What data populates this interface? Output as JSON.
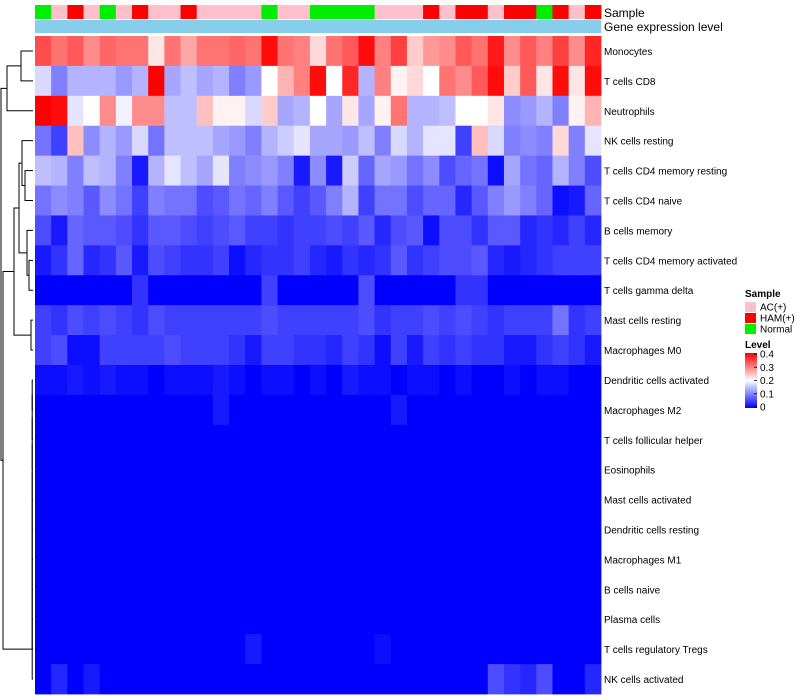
{
  "chart_data": {
    "type": "heatmap",
    "title": "",
    "annotation_tracks": [
      {
        "label": "Sample"
      },
      {
        "label": "Gene expression level"
      }
    ],
    "value_range": [
      0,
      0.4
    ],
    "samples": [
      "Normal",
      "AC(+)",
      "HAM(+)",
      "AC(+)",
      "Normal",
      "AC(+)",
      "HAM(+)",
      "AC(+)",
      "AC(+)",
      "HAM(+)",
      "AC(+)",
      "AC(+)",
      "AC(+)",
      "AC(+)",
      "Normal",
      "AC(+)",
      "AC(+)",
      "Normal",
      "Normal",
      "Normal",
      "Normal",
      "AC(+)",
      "AC(+)",
      "AC(+)",
      "HAM(+)",
      "AC(+)",
      "HAM(+)",
      "HAM(+)",
      "AC(+)",
      "HAM(+)",
      "HAM(+)",
      "Normal",
      "HAM(+)",
      "AC(+)",
      "HAM(+)"
    ],
    "rows": [
      {
        "name": "Monocytes",
        "values": [
          0.34,
          0.31,
          0.33,
          0.29,
          0.32,
          0.31,
          0.31,
          0.22,
          0.31,
          0.27,
          0.31,
          0.31,
          0.32,
          0.31,
          0.39,
          0.31,
          0.3,
          0.23,
          0.31,
          0.33,
          0.39,
          0.3,
          0.35,
          0.24,
          0.28,
          0.29,
          0.33,
          0.31,
          0.38,
          0.29,
          0.33,
          0.3,
          0.35,
          0.29,
          0.37
        ]
      },
      {
        "name": "T cells CD8",
        "values": [
          0.17,
          0.1,
          0.14,
          0.14,
          0.14,
          0.12,
          0.14,
          0.4,
          0.13,
          0.15,
          0.13,
          0.14,
          0.1,
          0.12,
          0.2,
          0.26,
          0.3,
          0.39,
          0.2,
          0.37,
          0.14,
          0.3,
          0.21,
          0.23,
          0.2,
          0.31,
          0.29,
          0.33,
          0.39,
          0.24,
          0.33,
          0.22,
          0.39,
          0.22,
          0.39
        ]
      },
      {
        "name": "Neutrophils",
        "values": [
          0.4,
          0.39,
          0.18,
          0.2,
          0.29,
          0.19,
          0.29,
          0.29,
          0.15,
          0.15,
          0.25,
          0.21,
          0.21,
          0.17,
          0.24,
          0.13,
          0.14,
          0.2,
          0.13,
          0.22,
          0.13,
          0.21,
          0.31,
          0.14,
          0.14,
          0.15,
          0.2,
          0.2,
          0.22,
          0.11,
          0.12,
          0.14,
          0.1,
          0.21,
          0.26
        ]
      },
      {
        "name": "NK cells resting",
        "values": [
          0.09,
          0.05,
          0.25,
          0.11,
          0.14,
          0.12,
          0.17,
          0.09,
          0.15,
          0.15,
          0.15,
          0.13,
          0.12,
          0.1,
          0.14,
          0.16,
          0.18,
          0.13,
          0.13,
          0.12,
          0.15,
          0.1,
          0.17,
          0.14,
          0.18,
          0.18,
          0.05,
          0.25,
          0.17,
          0.1,
          0.11,
          0.1,
          0.23,
          0.1,
          0.18
        ]
      },
      {
        "name": "T cells CD4 memory resting",
        "values": [
          0.15,
          0.14,
          0.1,
          0.15,
          0.14,
          0.1,
          0.02,
          0.14,
          0.18,
          0.15,
          0.13,
          0.18,
          0.1,
          0.11,
          0.12,
          0.1,
          0.02,
          0.11,
          0.02,
          0.16,
          0.08,
          0.13,
          0.12,
          0.09,
          0.11,
          0.06,
          0.08,
          0.09,
          0.01,
          0.13,
          0.09,
          0.08,
          0.14,
          0.1,
          0.06
        ]
      },
      {
        "name": "T cells CD4 naive",
        "values": [
          0.09,
          0.11,
          0.1,
          0.07,
          0.11,
          0.09,
          0.05,
          0.1,
          0.09,
          0.09,
          0.06,
          0.07,
          0.09,
          0.08,
          0.1,
          0.07,
          0.05,
          0.07,
          0.1,
          0.14,
          0.05,
          0.09,
          0.09,
          0.06,
          0.08,
          0.08,
          0.03,
          0.07,
          0.1,
          0.12,
          0.1,
          0.08,
          0.01,
          0.02,
          0.08
        ]
      },
      {
        "name": "B cells memory",
        "values": [
          0.06,
          0.02,
          0.08,
          0.07,
          0.07,
          0.06,
          0.04,
          0.07,
          0.07,
          0.06,
          0.05,
          0.06,
          0.07,
          0.05,
          0.05,
          0.04,
          0.05,
          0.05,
          0.06,
          0.05,
          0.07,
          0.03,
          0.06,
          0.07,
          0.01,
          0.06,
          0.06,
          0.04,
          0.07,
          0.07,
          0.03,
          0.04,
          0.03,
          0.05,
          0.03
        ]
      },
      {
        "name": "T cells CD4 memory activated",
        "values": [
          0.02,
          0.04,
          0.08,
          0.03,
          0.04,
          0.07,
          0.02,
          0.06,
          0.05,
          0.04,
          0.04,
          0.05,
          0.01,
          0.03,
          0.04,
          0.04,
          0.05,
          0.03,
          0.02,
          0.04,
          0.03,
          0.04,
          0.07,
          0.04,
          0.05,
          0.06,
          0.06,
          0.07,
          0.03,
          0.02,
          0.03,
          0.04,
          0.05,
          0.05,
          0.05
        ]
      },
      {
        "name": "T cells gamma delta",
        "values": [
          0.0,
          0.0,
          0.0,
          0.0,
          0.0,
          0.0,
          0.04,
          0.0,
          0.0,
          0.0,
          0.0,
          0.0,
          0.0,
          0.0,
          0.05,
          0.0,
          0.0,
          0.0,
          0.0,
          0.0,
          0.06,
          0.0,
          0.0,
          0.0,
          0.0,
          0.0,
          0.04,
          0.04,
          0.0,
          0.0,
          0.0,
          0.0,
          0.0,
          0.0,
          0.0
        ]
      },
      {
        "name": "Mast cells resting",
        "values": [
          0.05,
          0.04,
          0.06,
          0.05,
          0.06,
          0.05,
          0.04,
          0.06,
          0.05,
          0.05,
          0.05,
          0.05,
          0.05,
          0.05,
          0.06,
          0.05,
          0.05,
          0.05,
          0.05,
          0.05,
          0.06,
          0.04,
          0.05,
          0.05,
          0.06,
          0.05,
          0.06,
          0.05,
          0.04,
          0.05,
          0.05,
          0.05,
          0.09,
          0.04,
          0.05
        ]
      },
      {
        "name": "Macrophages M0",
        "values": [
          0.05,
          0.06,
          0.01,
          0.01,
          0.05,
          0.05,
          0.05,
          0.05,
          0.06,
          0.05,
          0.05,
          0.05,
          0.04,
          0.02,
          0.05,
          0.05,
          0.04,
          0.04,
          0.03,
          0.05,
          0.04,
          0.01,
          0.05,
          0.02,
          0.05,
          0.04,
          0.05,
          0.04,
          0.04,
          0.02,
          0.02,
          0.04,
          0.05,
          0.04,
          0.02
        ]
      },
      {
        "name": "Dendritic cells activated",
        "values": [
          0.01,
          0.01,
          0.02,
          0.01,
          0.02,
          0.01,
          0.01,
          0.0,
          0.01,
          0.01,
          0.01,
          0.02,
          0.01,
          0.0,
          0.01,
          0.01,
          0.0,
          0.01,
          0.0,
          0.02,
          0.01,
          0.01,
          0.0,
          0.01,
          0.01,
          0.0,
          0.01,
          0.0,
          0.0,
          0.01,
          0.0,
          0.01,
          0.01,
          0.0,
          0.0
        ]
      },
      {
        "name": "Macrophages M2",
        "values": [
          0.0,
          0.0,
          0.0,
          0.0,
          0.0,
          0.0,
          0.0,
          0.0,
          0.0,
          0.0,
          0.0,
          0.02,
          0.0,
          0.0,
          0.0,
          0.0,
          0.0,
          0.0,
          0.0,
          0.0,
          0.0,
          0.0,
          0.02,
          0.0,
          0.0,
          0.0,
          0.0,
          0.0,
          0.0,
          0.0,
          0.0,
          0.0,
          0.0,
          0.0,
          0.0
        ]
      },
      {
        "name": "T cells follicular helper",
        "values": [
          0.0,
          0.0,
          0.0,
          0.0,
          0.0,
          0.0,
          0.0,
          0.0,
          0.0,
          0.0,
          0.0,
          0.0,
          0.0,
          0.0,
          0.0,
          0.0,
          0.0,
          0.0,
          0.0,
          0.0,
          0.0,
          0.0,
          0.0,
          0.0,
          0.0,
          0.0,
          0.0,
          0.0,
          0.0,
          0.0,
          0.0,
          0.0,
          0.0,
          0.0,
          0.0
        ]
      },
      {
        "name": "Eosinophils",
        "values": [
          0.0,
          0.0,
          0.0,
          0.0,
          0.0,
          0.0,
          0.0,
          0.0,
          0.0,
          0.0,
          0.0,
          0.0,
          0.0,
          0.0,
          0.0,
          0.0,
          0.0,
          0.0,
          0.0,
          0.0,
          0.0,
          0.0,
          0.0,
          0.0,
          0.0,
          0.0,
          0.0,
          0.0,
          0.0,
          0.0,
          0.0,
          0.0,
          0.0,
          0.0,
          0.0
        ]
      },
      {
        "name": "Mast cells activated",
        "values": [
          0.0,
          0.0,
          0.0,
          0.0,
          0.0,
          0.0,
          0.0,
          0.0,
          0.0,
          0.0,
          0.0,
          0.0,
          0.0,
          0.0,
          0.0,
          0.0,
          0.0,
          0.0,
          0.0,
          0.0,
          0.0,
          0.0,
          0.0,
          0.0,
          0.0,
          0.0,
          0.0,
          0.0,
          0.0,
          0.0,
          0.0,
          0.0,
          0.0,
          0.0,
          0.0
        ]
      },
      {
        "name": "Dendritic cells resting",
        "values": [
          0.0,
          0.0,
          0.0,
          0.0,
          0.0,
          0.0,
          0.0,
          0.0,
          0.0,
          0.0,
          0.0,
          0.0,
          0.0,
          0.0,
          0.0,
          0.0,
          0.0,
          0.0,
          0.0,
          0.0,
          0.0,
          0.0,
          0.0,
          0.0,
          0.0,
          0.0,
          0.0,
          0.0,
          0.0,
          0.0,
          0.0,
          0.0,
          0.0,
          0.0,
          0.0
        ]
      },
      {
        "name": "Macrophages M1",
        "values": [
          0.0,
          0.0,
          0.0,
          0.0,
          0.0,
          0.0,
          0.0,
          0.0,
          0.0,
          0.0,
          0.0,
          0.0,
          0.0,
          0.0,
          0.0,
          0.0,
          0.0,
          0.0,
          0.0,
          0.0,
          0.0,
          0.0,
          0.0,
          0.0,
          0.0,
          0.0,
          0.0,
          0.0,
          0.0,
          0.0,
          0.0,
          0.0,
          0.0,
          0.0,
          0.0
        ]
      },
      {
        "name": "B cells naive",
        "values": [
          0.0,
          0.0,
          0.0,
          0.0,
          0.0,
          0.0,
          0.0,
          0.0,
          0.0,
          0.0,
          0.0,
          0.0,
          0.0,
          0.0,
          0.0,
          0.0,
          0.0,
          0.0,
          0.0,
          0.0,
          0.0,
          0.0,
          0.0,
          0.0,
          0.0,
          0.0,
          0.0,
          0.0,
          0.0,
          0.0,
          0.0,
          0.0,
          0.0,
          0.0,
          0.0
        ]
      },
      {
        "name": "Plasma cells",
        "values": [
          0.0,
          0.0,
          0.0,
          0.0,
          0.0,
          0.0,
          0.0,
          0.0,
          0.0,
          0.0,
          0.0,
          0.0,
          0.0,
          0.0,
          0.0,
          0.0,
          0.0,
          0.0,
          0.0,
          0.0,
          0.0,
          0.0,
          0.0,
          0.0,
          0.0,
          0.0,
          0.0,
          0.0,
          0.0,
          0.0,
          0.0,
          0.0,
          0.0,
          0.0,
          0.0
        ]
      },
      {
        "name": "T cells regulatory  Tregs",
        "values": [
          0.0,
          0.0,
          0.0,
          0.0,
          0.0,
          0.0,
          0.0,
          0.0,
          0.0,
          0.0,
          0.0,
          0.0,
          0.0,
          0.02,
          0.0,
          0.0,
          0.0,
          0.0,
          0.0,
          0.0,
          0.0,
          0.01,
          0.0,
          0.0,
          0.0,
          0.0,
          0.0,
          0.0,
          0.0,
          0.0,
          0.0,
          0.0,
          0.0,
          0.0,
          0.0
        ]
      },
      {
        "name": "NK cells activated",
        "values": [
          0.0,
          0.03,
          0.0,
          0.02,
          0.0,
          0.0,
          0.0,
          0.0,
          0.0,
          0.0,
          0.0,
          0.0,
          0.0,
          0.0,
          0.0,
          0.0,
          0.0,
          0.0,
          0.0,
          0.0,
          0.0,
          0.0,
          0.0,
          0.0,
          0.0,
          0.0,
          0.0,
          0.0,
          0.06,
          0.04,
          0.03,
          0.06,
          0.0,
          0.0,
          0.03
        ]
      }
    ],
    "legend": {
      "sample": {
        "title": "Sample",
        "entries": [
          {
            "label": "AC(+)",
            "color": "#ffc0cb"
          },
          {
            "label": "HAM(+)",
            "color": "#ff0000"
          },
          {
            "label": "Normal",
            "color": "#00ee00"
          }
        ]
      },
      "level": {
        "title": "Level",
        "ticks": [
          "0.4",
          "0.3",
          "0.2",
          "0.1",
          "0"
        ],
        "tick_values": [
          0.4,
          0.3,
          0.2,
          0.1,
          0
        ]
      }
    },
    "colors": {
      "low": "#0000ff",
      "mid": "#ffffff",
      "high": "#ff0000",
      "gene_track": "#87ceeb",
      "dendrogram": "#000000"
    }
  }
}
